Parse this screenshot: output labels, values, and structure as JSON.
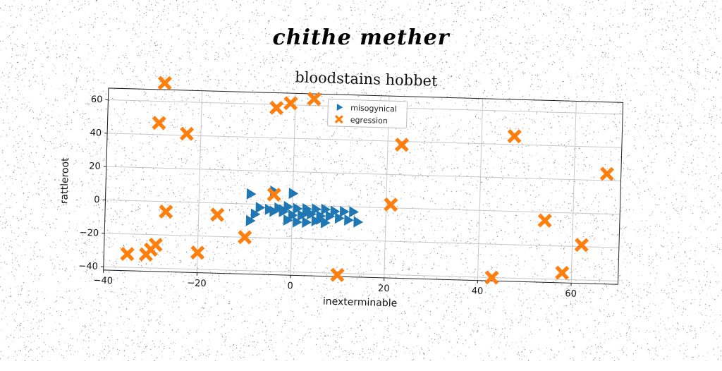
{
  "header": {
    "suptitle": "chithe mether"
  },
  "chart_data": {
    "type": "scatter",
    "title": "bloodstains hobbet",
    "xlabel": "inexterminable",
    "ylabel": "rattleroot",
    "xlim": [
      -40,
      70
    ],
    "ylim": [
      -42,
      67
    ],
    "xticks": [
      -40,
      -20,
      0,
      20,
      40,
      60
    ],
    "yticks": [
      -40,
      -20,
      0,
      20,
      40,
      60
    ],
    "grid": true,
    "legend_position": "top-center",
    "series": [
      {
        "name": "misogynical",
        "marker": "triangle-right",
        "color": "#1f77b4",
        "points": [
          [
            -9,
            6
          ],
          [
            -4,
            8
          ],
          [
            0,
            7
          ],
          [
            -7,
            -2
          ],
          [
            -5,
            -3
          ],
          [
            -3,
            -2
          ],
          [
            -1,
            -1
          ],
          [
            1,
            -2
          ],
          [
            3,
            -2
          ],
          [
            5,
            -2
          ],
          [
            7,
            -2
          ],
          [
            9,
            -3
          ],
          [
            11,
            -3
          ],
          [
            13,
            -3
          ],
          [
            -8,
            -6
          ],
          [
            -4,
            -4
          ],
          [
            -2,
            -4
          ],
          [
            0,
            -6
          ],
          [
            2,
            -6
          ],
          [
            4,
            -5
          ],
          [
            6,
            -6
          ],
          [
            8,
            -6
          ],
          [
            10,
            -7
          ],
          [
            12,
            -8
          ],
          [
            -1,
            -9
          ],
          [
            1,
            -10
          ],
          [
            3,
            -10
          ],
          [
            5,
            -9
          ],
          [
            7,
            -10
          ],
          [
            14,
            -9
          ],
          [
            -9,
            -10
          ],
          [
            -2,
            -3
          ],
          [
            3,
            -4
          ],
          [
            6,
            -8
          ]
        ]
      },
      {
        "name": "egression",
        "marker": "X",
        "color": "#ff7f0e",
        "points": [
          [
            -28,
            71
          ],
          [
            -29,
            47
          ],
          [
            -23,
            41
          ],
          [
            -4,
            58
          ],
          [
            -1,
            61
          ],
          [
            4,
            64
          ],
          [
            23,
            38
          ],
          [
            47,
            45
          ],
          [
            67,
            24
          ],
          [
            -27,
            -6
          ],
          [
            -16,
            -7
          ],
          [
            -10,
            -20
          ],
          [
            -4,
            6
          ],
          [
            21,
            2
          ],
          [
            54,
            -5
          ],
          [
            62,
            -19
          ],
          [
            -35,
            -32
          ],
          [
            -31,
            -32
          ],
          [
            -30,
            -29
          ],
          [
            -29,
            -26
          ],
          [
            -20,
            -30
          ],
          [
            10,
            -41
          ],
          [
            43,
            -40
          ],
          [
            58,
            -36
          ]
        ]
      }
    ]
  }
}
